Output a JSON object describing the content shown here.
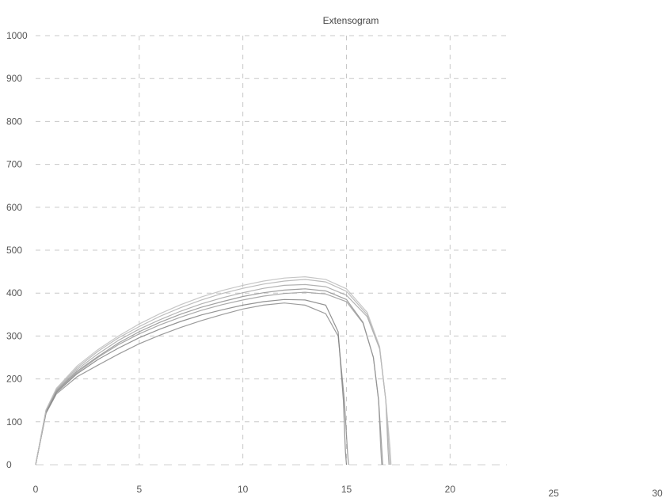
{
  "chart_data": {
    "type": "line",
    "title": "Extensogram",
    "xlabel": "",
    "ylabel": "",
    "xlim": [
      0,
      30
    ],
    "ylim": [
      0,
      1000
    ],
    "xticks": [
      0,
      5,
      10,
      15,
      20,
      25,
      30
    ],
    "yticks": [
      0,
      100,
      200,
      300,
      400,
      500,
      600,
      700,
      800,
      900,
      1000
    ],
    "grid": true,
    "series": [
      {
        "color": "#8a8a8a",
        "x": [
          0,
          0.5,
          1,
          2,
          3,
          4,
          5,
          6,
          7,
          8,
          9,
          10,
          11,
          12,
          13,
          14,
          14.6,
          14.9,
          15.05,
          15.1
        ],
        "y": [
          0,
          120,
          165,
          205,
          232,
          258,
          282,
          302,
          320,
          336,
          350,
          363,
          372,
          377,
          372,
          352,
          300,
          150,
          30,
          0
        ]
      },
      {
        "color": "#7f7f7f",
        "x": [
          0,
          0.5,
          1,
          2,
          3,
          4,
          5,
          6,
          7,
          8,
          9,
          10,
          11,
          12,
          13,
          14,
          14.6,
          14.85,
          14.95,
          15.0
        ],
        "y": [
          0,
          122,
          168,
          212,
          245,
          272,
          296,
          316,
          334,
          349,
          361,
          372,
          380,
          385,
          384,
          372,
          310,
          150,
          30,
          0
        ]
      },
      {
        "color": "#9a9a9a",
        "x": [
          0,
          0.5,
          1,
          2,
          3,
          4,
          5,
          6,
          7,
          8,
          9,
          10,
          11,
          12,
          13,
          14,
          15,
          15.8,
          16.3,
          16.55,
          16.65,
          16.7
        ],
        "y": [
          0,
          125,
          170,
          215,
          250,
          280,
          305,
          326,
          344,
          360,
          373,
          384,
          393,
          399,
          402,
          398,
          380,
          330,
          250,
          150,
          40,
          0
        ]
      },
      {
        "color": "#8f8f8f",
        "x": [
          0,
          0.5,
          1,
          2,
          3,
          4,
          5,
          6,
          7,
          8,
          9,
          10,
          11,
          12,
          13,
          14,
          15,
          15.8,
          16.3,
          16.55,
          16.7,
          16.75
        ],
        "y": [
          0,
          124,
          172,
          218,
          252,
          284,
          310,
          332,
          351,
          367,
          380,
          392,
          401,
          407,
          410,
          405,
          385,
          332,
          250,
          150,
          40,
          0
        ]
      },
      {
        "color": "#a5a5a5",
        "x": [
          0,
          0.5,
          1,
          2,
          3,
          4,
          5,
          6,
          7,
          8,
          9,
          10,
          11,
          12,
          13,
          14,
          15,
          16,
          16.6,
          16.9,
          17.0,
          17.05
        ],
        "y": [
          0,
          126,
          174,
          222,
          258,
          290,
          316,
          338,
          358,
          375,
          389,
          401,
          411,
          418,
          420,
          415,
          395,
          345,
          270,
          150,
          40,
          0
        ]
      },
      {
        "color": "#b0b0b0",
        "x": [
          0,
          0.5,
          1,
          2,
          3,
          4,
          5,
          6,
          7,
          8,
          9,
          10,
          11,
          12,
          13,
          14,
          15,
          16,
          16.6,
          16.9,
          17.05,
          17.1
        ],
        "y": [
          0,
          127,
          176,
          226,
          264,
          296,
          322,
          346,
          366,
          384,
          399,
          411,
          421,
          428,
          432,
          426,
          404,
          350,
          272,
          150,
          40,
          0
        ]
      },
      {
        "color": "#bcbcbc",
        "x": [
          0,
          0.5,
          1,
          2,
          3,
          4,
          5,
          6,
          7,
          8,
          9,
          10,
          11,
          12,
          13,
          14,
          15,
          16,
          16.6,
          16.9,
          17.1,
          17.15
        ],
        "y": [
          0,
          128,
          178,
          230,
          268,
          300,
          328,
          352,
          373,
          391,
          406,
          418,
          428,
          435,
          438,
          432,
          410,
          355,
          275,
          150,
          40,
          0
        ]
      }
    ]
  }
}
